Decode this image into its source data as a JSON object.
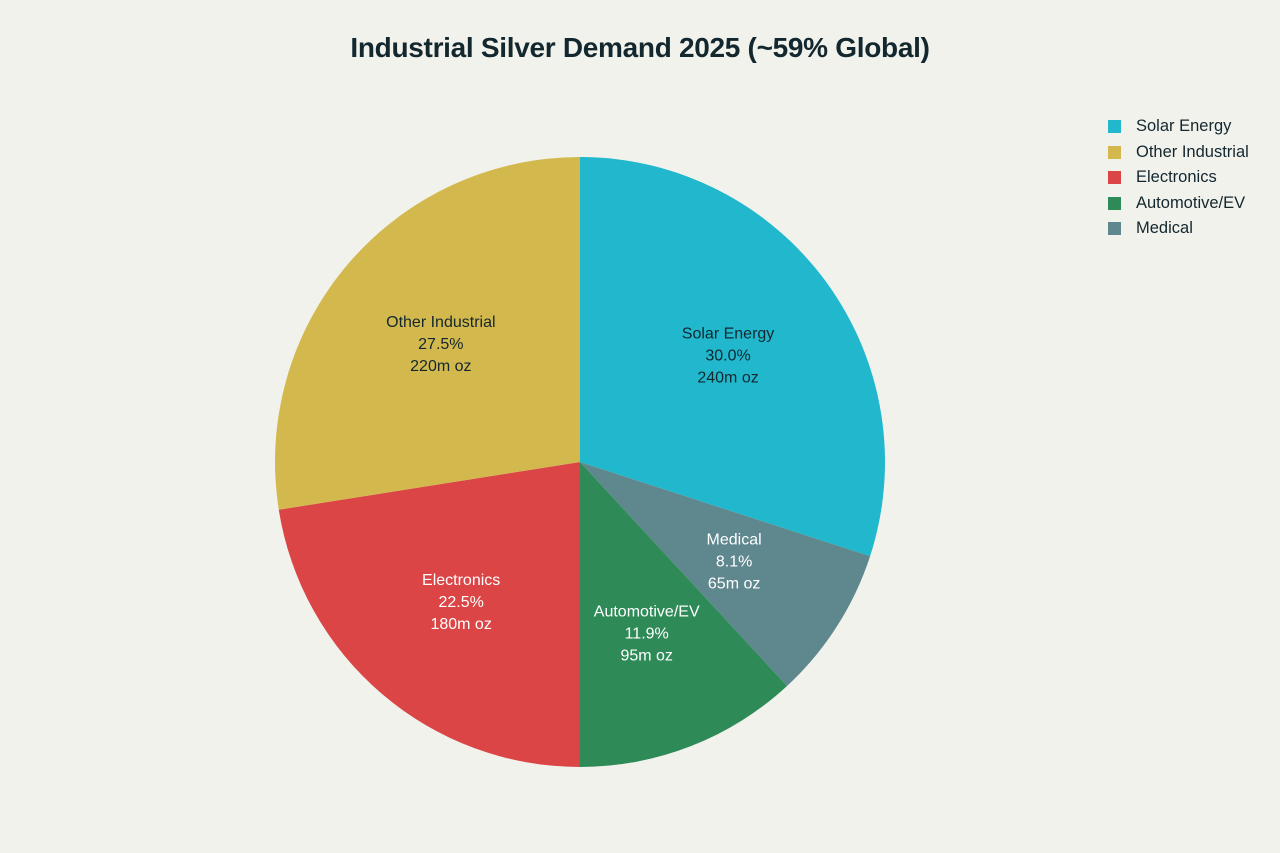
{
  "chart_data": {
    "type": "pie",
    "title": "Industrial Silver Demand 2025 (~59% Global)",
    "slices": [
      {
        "label": "Solar Energy",
        "value": 240,
        "percent": "30.0%",
        "amount": "240m oz",
        "color": "#21b8cd",
        "text_color": "#13272e"
      },
      {
        "label": "Medical",
        "value": 65,
        "percent": "8.1%",
        "amount": "65m oz",
        "color": "#5e878e",
        "text_color": "#ffffff"
      },
      {
        "label": "Automotive/EV",
        "value": 95,
        "percent": "11.9%",
        "amount": "95m oz",
        "color": "#2e8b57",
        "text_color": "#ffffff"
      },
      {
        "label": "Electronics",
        "value": 180,
        "percent": "22.5%",
        "amount": "180m oz",
        "color": "#db4546",
        "text_color": "#ffffff"
      },
      {
        "label": "Other Industrial",
        "value": 220,
        "percent": "27.5%",
        "amount": "220m oz",
        "color": "#d3b94d",
        "text_color": "#13272e"
      }
    ],
    "legend": [
      {
        "label": "Solar Energy",
        "color": "#21b8cd"
      },
      {
        "label": "Other Industrial",
        "color": "#d3b94d"
      },
      {
        "label": "Electronics",
        "color": "#db4546"
      },
      {
        "label": "Automotive/EV",
        "color": "#2e8b57"
      },
      {
        "label": "Medical",
        "color": "#5e878e"
      }
    ],
    "legend_position": "top-right"
  }
}
